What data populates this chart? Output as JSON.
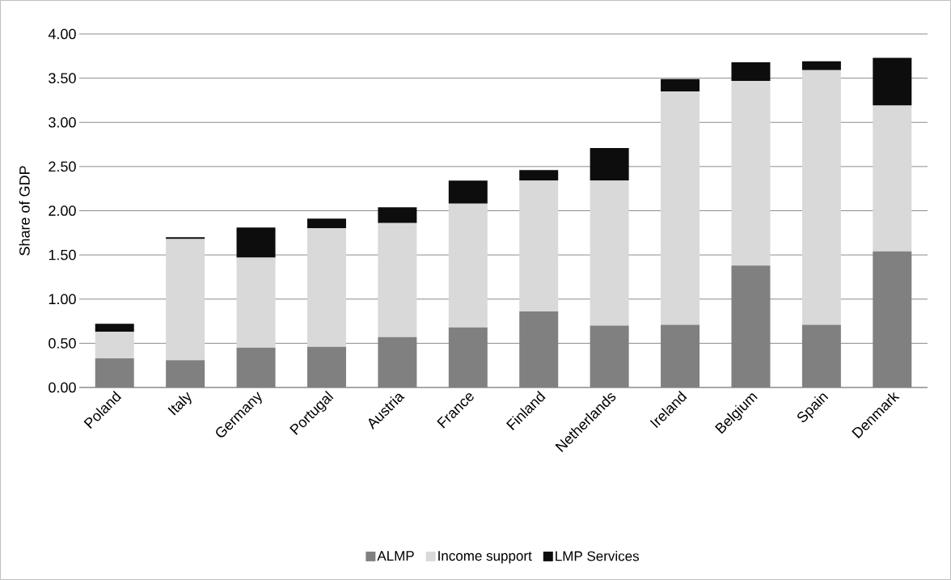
{
  "chart_data": {
    "type": "bar",
    "stacked": true,
    "ylabel": "Share of GDP",
    "categories": [
      "Poland",
      "Italy",
      "Germany",
      "Portugal",
      "Austria",
      "France",
      "Finland",
      "Netherlands",
      "Ireland",
      "Belgium",
      "Spain",
      "Denmark"
    ],
    "series": [
      {
        "name": "ALMP",
        "color": "#808080",
        "values": [
          0.33,
          0.31,
          0.45,
          0.46,
          0.57,
          0.68,
          0.86,
          0.7,
          0.71,
          1.38,
          0.71,
          1.54
        ]
      },
      {
        "name": "Income support",
        "color": "#d9d9d9",
        "values": [
          0.3,
          1.37,
          1.02,
          1.34,
          1.29,
          1.4,
          1.48,
          1.64,
          2.64,
          2.09,
          2.88,
          1.65
        ]
      },
      {
        "name": "LMP Services",
        "color": "#0d0d0d",
        "values": [
          0.09,
          0.02,
          0.34,
          0.11,
          0.18,
          0.26,
          0.12,
          0.37,
          0.14,
          0.21,
          0.1,
          0.54
        ]
      }
    ],
    "ylim": [
      0,
      4
    ],
    "yticks": [
      {
        "value": 0,
        "label": "0.00"
      },
      {
        "value": 0.5,
        "label": "0.50"
      },
      {
        "value": 1,
        "label": "1.00"
      },
      {
        "value": 1.5,
        "label": "1.50"
      },
      {
        "value": 2,
        "label": "2.00"
      },
      {
        "value": 2.5,
        "label": "2.50"
      },
      {
        "value": 3,
        "label": "3.00"
      },
      {
        "value": 3.5,
        "label": "3.50"
      },
      {
        "value": 4,
        "label": "4.00"
      }
    ],
    "grid": "y",
    "legend": "bottom"
  }
}
